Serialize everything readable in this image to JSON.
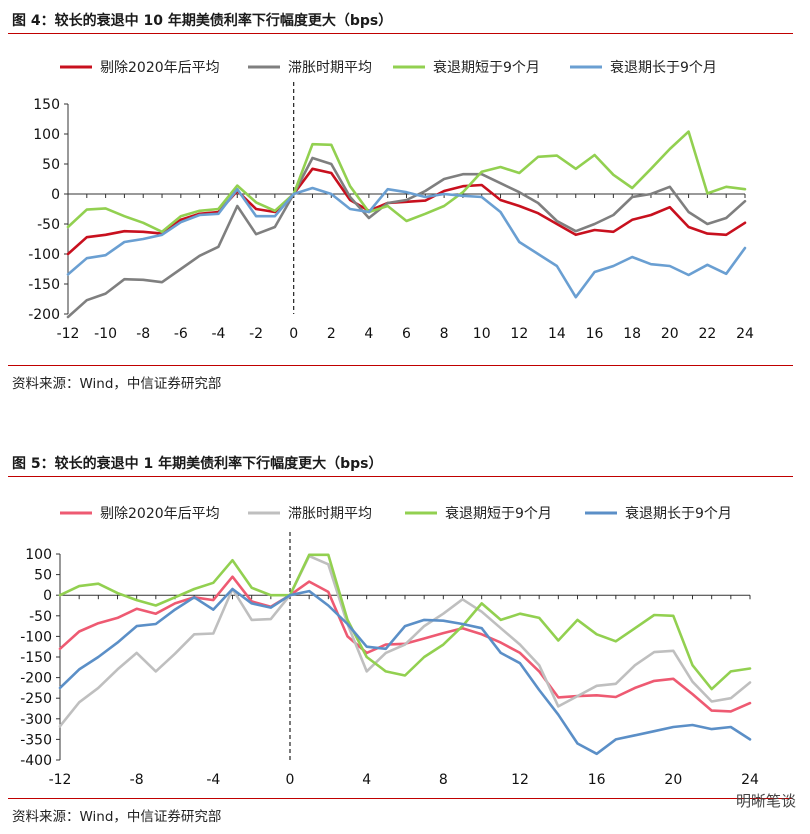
{
  "figures": [
    {
      "title": "图 4：较长的衰退中 10 年期美债利率下行幅度更大（bps）",
      "source": "资料来源：Wind，中信证券研究部"
    },
    {
      "title": "图 5：较长的衰退中 1 年期美债利率下行幅度更大（bps）",
      "source": "资料来源：Wind，中信证券研究部"
    }
  ],
  "watermark": "明晰笔谈",
  "chart_data": [
    {
      "type": "line",
      "title": "图 4：较长的衰退中 10 年期美债利率下行幅度更大（bps）",
      "xlabel": "",
      "ylabel": "",
      "x": [
        -12,
        -11,
        -10,
        -9,
        -8,
        -7,
        -6,
        -5,
        -4,
        -3,
        -2,
        -1,
        0,
        1,
        2,
        3,
        4,
        5,
        6,
        7,
        8,
        9,
        10,
        11,
        12,
        13,
        14,
        15,
        16,
        17,
        18,
        19,
        20,
        21,
        22,
        23,
        24
      ],
      "xticks": [
        -12,
        -10,
        -8,
        -6,
        -4,
        -2,
        0,
        2,
        4,
        6,
        8,
        10,
        12,
        14,
        16,
        18,
        20,
        22,
        24
      ],
      "ylim": [
        -200,
        150
      ],
      "yticks": [
        150,
        100,
        50,
        0,
        -50,
        -100,
        -150,
        -200
      ],
      "legend_position": "top",
      "series": [
        {
          "name": "剔除2020年后平均",
          "color": "#c8101e",
          "values": [
            -100,
            -72,
            -68,
            -62,
            -63,
            -66,
            -43,
            -33,
            -30,
            5,
            -25,
            -30,
            0,
            42,
            35,
            -10,
            -28,
            -15,
            -13,
            -11,
            5,
            13,
            15,
            -10,
            -20,
            -32,
            -50,
            -68,
            -60,
            -63,
            -43,
            -35,
            -22,
            -55,
            -66,
            -68,
            -48
          ]
        },
        {
          "name": "滞胀时期平均",
          "color": "#7f7f7f",
          "values": [
            -205,
            -177,
            -166,
            -142,
            -143,
            -147,
            -125,
            -103,
            -88,
            -20,
            -67,
            -55,
            0,
            60,
            50,
            -5,
            -40,
            -15,
            -10,
            5,
            25,
            33,
            33,
            18,
            3,
            -15,
            -45,
            -62,
            -50,
            -35,
            -5,
            0,
            12,
            -30,
            -50,
            -40,
            -12
          ]
        },
        {
          "name": "衰退期短于9个月",
          "color": "#92d050",
          "values": [
            -55,
            -26,
            -24,
            -37,
            -48,
            -63,
            -37,
            -28,
            -25,
            14,
            -14,
            -28,
            0,
            83,
            82,
            13,
            -30,
            -20,
            -45,
            -33,
            -20,
            3,
            37,
            45,
            35,
            62,
            64,
            42,
            65,
            32,
            10,
            42,
            75,
            104,
            1,
            12,
            8
          ]
        },
        {
          "name": "衰退期长于9个月",
          "color": "#6a9fd2",
          "values": [
            -134,
            -107,
            -102,
            -80,
            -75,
            -68,
            -47,
            -35,
            -33,
            8,
            -37,
            -37,
            0,
            10,
            0,
            -25,
            -30,
            8,
            3,
            -5,
            0,
            -3,
            -5,
            -30,
            -80,
            -100,
            -120,
            -172,
            -130,
            -120,
            -105,
            -117,
            -120,
            -135,
            -118,
            -133,
            -90
          ]
        }
      ]
    },
    {
      "type": "line",
      "title": "图 5：较长的衰退中 1 年期美债利率下行幅度更大（bps）",
      "xlabel": "",
      "ylabel": "",
      "x": [
        -12,
        -11,
        -10,
        -9,
        -8,
        -7,
        -6,
        -5,
        -4,
        -3,
        -2,
        -1,
        0,
        1,
        2,
        3,
        4,
        5,
        6,
        7,
        8,
        9,
        10,
        11,
        12,
        13,
        14,
        15,
        16,
        17,
        18,
        19,
        20,
        21,
        22,
        23,
        24
      ],
      "xticks": [
        -12,
        -8,
        -4,
        0,
        4,
        8,
        12,
        16,
        20,
        24
      ],
      "ylim": [
        -400,
        100
      ],
      "yticks": [
        100,
        50,
        0,
        -50,
        -100,
        -150,
        -200,
        -250,
        -300,
        -350,
        -400
      ],
      "legend_position": "top",
      "series": [
        {
          "name": "剔除2020年后平均",
          "color": "#ee5a72",
          "values": [
            -130,
            -88,
            -68,
            -55,
            -33,
            -45,
            -20,
            -5,
            -12,
            45,
            -15,
            -28,
            0,
            33,
            8,
            -100,
            -140,
            -120,
            -118,
            -105,
            -92,
            -80,
            -95,
            -115,
            -140,
            -185,
            -248,
            -245,
            -243,
            -247,
            -225,
            -208,
            -203,
            -240,
            -280,
            -282,
            -262
          ]
        },
        {
          "name": "滞胀时期平均",
          "color": "#bfbfbf",
          "values": [
            -318,
            -260,
            -225,
            -180,
            -140,
            -185,
            -142,
            -95,
            -93,
            15,
            -60,
            -58,
            0,
            95,
            75,
            -70,
            -185,
            -140,
            -120,
            -75,
            -45,
            -10,
            -40,
            -80,
            -120,
            -170,
            -270,
            -245,
            -220,
            -215,
            -170,
            -138,
            -135,
            -210,
            -258,
            -250,
            -212
          ]
        },
        {
          "name": "衰退期短于9个月",
          "color": "#92d050",
          "values": [
            0,
            22,
            28,
            5,
            -12,
            -25,
            -5,
            15,
            30,
            85,
            18,
            0,
            0,
            98,
            98,
            -60,
            -150,
            -185,
            -195,
            -150,
            -120,
            -75,
            -20,
            -60,
            -45,
            -55,
            -110,
            -60,
            -95,
            -112,
            -80,
            -48,
            -50,
            -170,
            -228,
            -185,
            -178
          ]
        },
        {
          "name": "衰退期长于9个月",
          "color": "#5b8fc7",
          "values": [
            -225,
            -180,
            -150,
            -115,
            -75,
            -70,
            -35,
            -5,
            -35,
            15,
            -20,
            -30,
            0,
            10,
            -25,
            -70,
            -125,
            -130,
            -75,
            -60,
            -62,
            -70,
            -80,
            -140,
            -165,
            -230,
            -290,
            -360,
            -385,
            -350,
            -340,
            -330,
            -320,
            -315,
            -325,
            -320,
            -350
          ]
        }
      ]
    }
  ]
}
